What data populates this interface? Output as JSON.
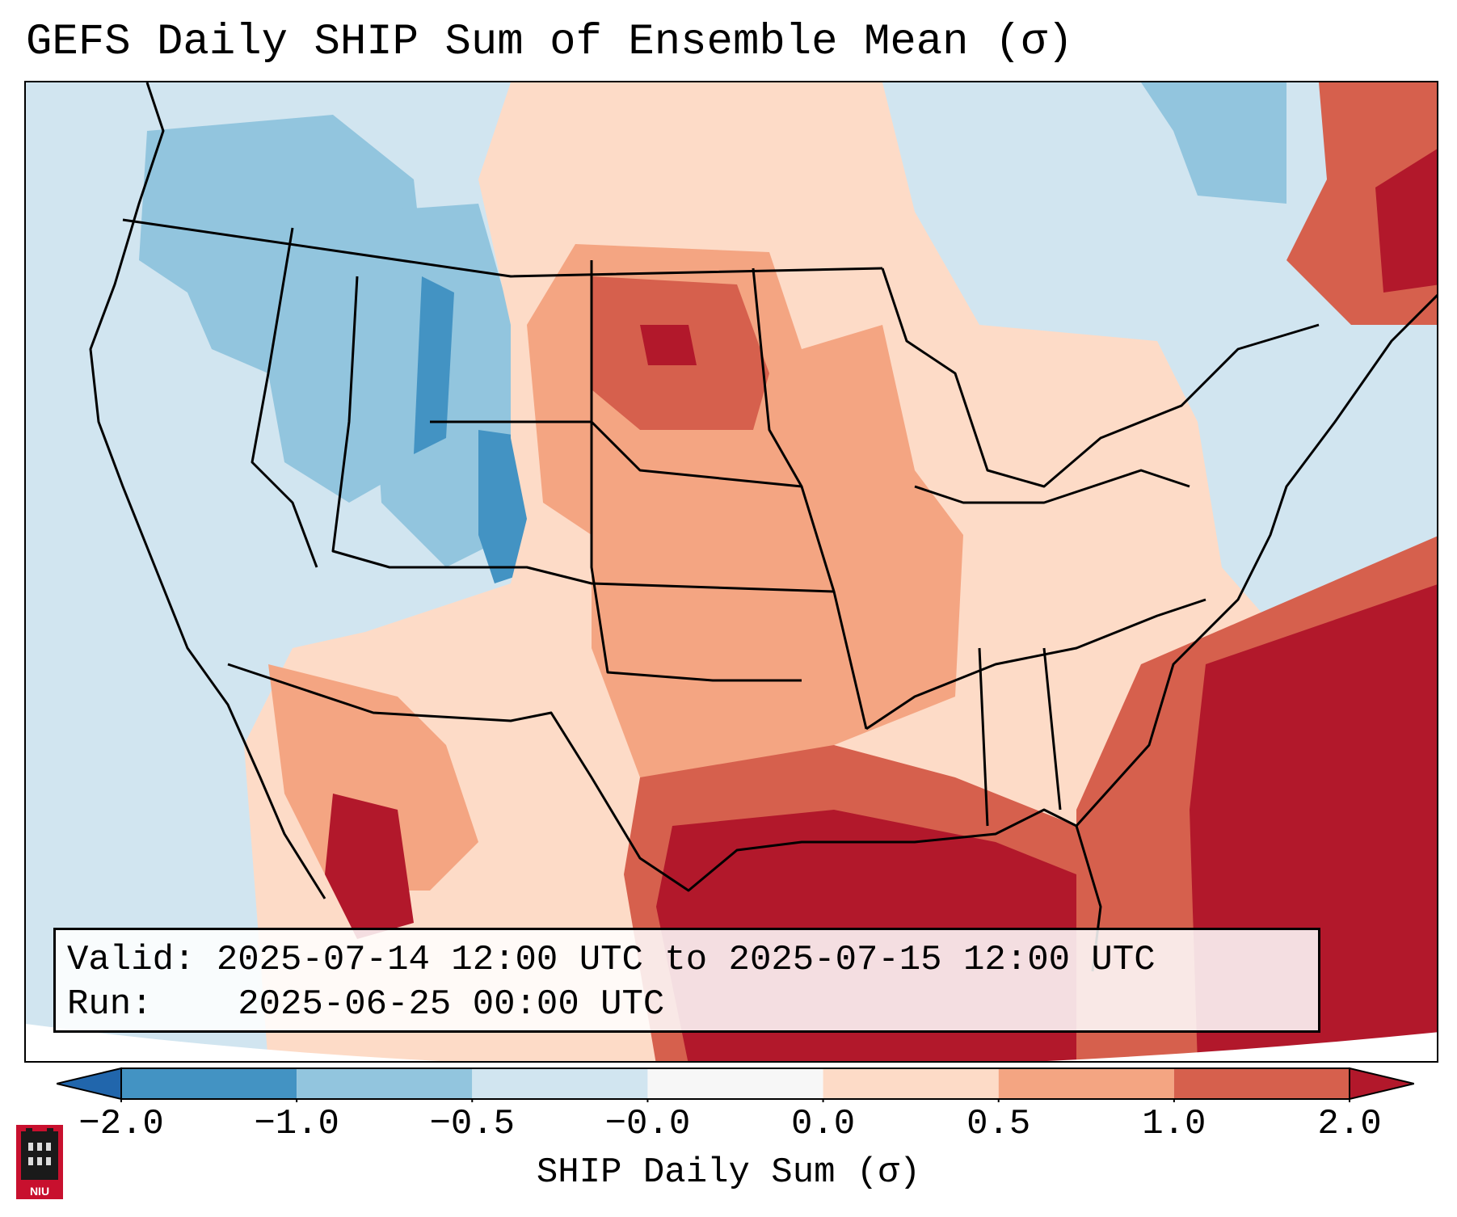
{
  "title": "GEFS Daily SHIP Sum of Ensemble Mean (σ)",
  "info": {
    "valid_label": "Valid:",
    "valid_value": "2025-07-14 12:00 UTC to 2025-07-15 12:00 UTC",
    "run_label": "Run:",
    "run_value": "2025-06-25 00:00 UTC"
  },
  "colorbar": {
    "label": "SHIP Daily Sum (σ)",
    "ticks": [
      "−2.0",
      "−1.0",
      "−0.5",
      "−0.0",
      "0.0",
      "0.5",
      "1.0",
      "2.0"
    ],
    "colors": [
      "#4393c3",
      "#92c5de",
      "#d1e5f0",
      "#f7f7f7",
      "#fddbc7",
      "#f4a582",
      "#d6604d"
    ],
    "under_color": "#2166ac",
    "over_color": "#b2182b"
  },
  "map": {
    "region": "Contiguous United States, southern Canada, northern Mexico, Gulf of Mexico",
    "background_color": "#d1e5f0",
    "colors": {
      "strong_negative": "#4393c3",
      "negative": "#92c5de",
      "near_zero_negative": "#d1e5f0",
      "near_zero_positive": "#fddbc7",
      "positive": "#f4a582",
      "strong_positive": "#d6604d",
      "extreme_positive": "#b2182b"
    }
  },
  "logo": {
    "text": "NIU"
  }
}
